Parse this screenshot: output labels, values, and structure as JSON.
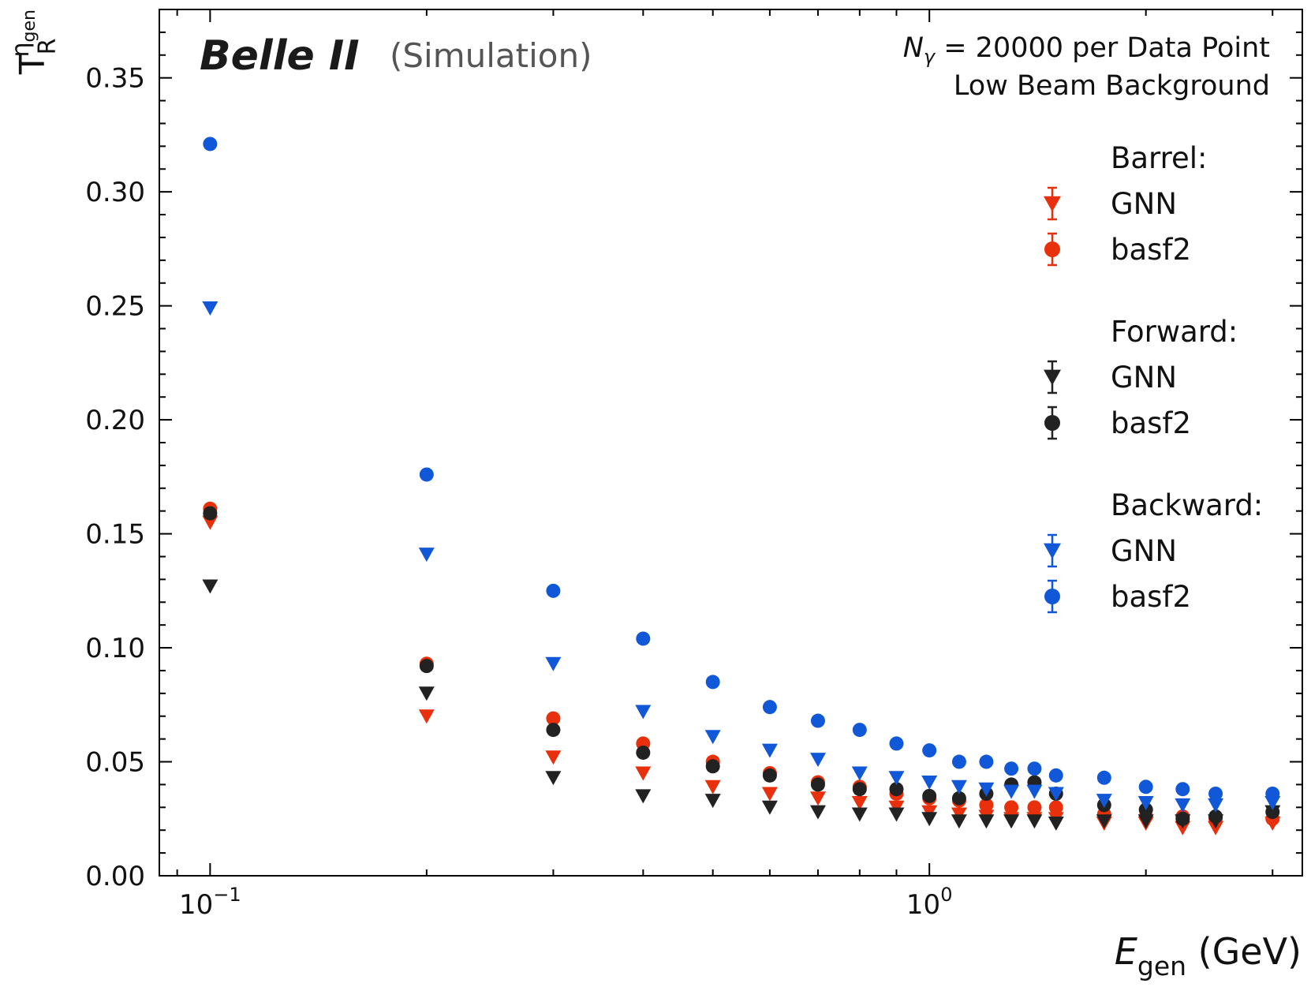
{
  "chart_data": {
    "type": "scatter",
    "title": "",
    "experiment": "Belle II",
    "experiment_note": "(Simulation)",
    "annotation_line1_symbol": "N",
    "annotation_line1_sub": "γ",
    "annotation_line1_rest": " = 20000 per Data Point",
    "annotation_line2": "Low Beam Background",
    "xlabel_symbol": "E",
    "xlabel_sub": "gen",
    "xlabel_unit": " (GeV)",
    "ylabel_main": "T",
    "ylabel_sub": "R",
    "ylabel_sup": "η",
    "ylabel_sup_sub": "gen",
    "xscale": "log",
    "xlim": [
      0.085,
      3.3
    ],
    "ylim": [
      0.0,
      0.38
    ],
    "xticks": [
      {
        "value": 0.1,
        "base": "10",
        "exp": "−1"
      },
      {
        "value": 1.0,
        "base": "10",
        "exp": "0"
      }
    ],
    "yticks": [
      {
        "value": 0.0,
        "label": "0.00"
      },
      {
        "value": 0.05,
        "label": "0.05"
      },
      {
        "value": 0.1,
        "label": "0.10"
      },
      {
        "value": 0.15,
        "label": "0.15"
      },
      {
        "value": 0.2,
        "label": "0.20"
      },
      {
        "value": 0.25,
        "label": "0.25"
      },
      {
        "value": 0.3,
        "label": "0.30"
      },
      {
        "value": 0.35,
        "label": "0.35"
      }
    ],
    "x": [
      0.1,
      0.2,
      0.3,
      0.4,
      0.5,
      0.6,
      0.7,
      0.8,
      0.9,
      1.0,
      1.1,
      1.2,
      1.3,
      1.4,
      1.5,
      1.75,
      2.0,
      2.25,
      2.5,
      3.0
    ],
    "legend_groups": [
      {
        "title": "Barrel:",
        "color": "#e8300c"
      },
      {
        "title": "Forward:",
        "color": "#222222"
      },
      {
        "title": "Backward:",
        "color": "#1158d8"
      }
    ],
    "series": [
      {
        "group": "Barrel",
        "name": "GNN",
        "marker": "triangle-down",
        "color": "#e8300c",
        "values": [
          0.155,
          0.07,
          0.052,
          0.045,
          0.039,
          0.036,
          0.034,
          0.032,
          0.03,
          0.028,
          0.027,
          0.026,
          0.025,
          0.025,
          0.025,
          0.023,
          0.023,
          0.021,
          0.021,
          0.023
        ]
      },
      {
        "group": "Barrel",
        "name": "basf2",
        "marker": "circle",
        "color": "#e8300c",
        "values": [
          0.161,
          0.093,
          0.069,
          0.058,
          0.05,
          0.045,
          0.041,
          0.039,
          0.036,
          0.034,
          0.033,
          0.031,
          0.03,
          0.03,
          0.03,
          0.027,
          0.026,
          0.026,
          0.025,
          0.025
        ]
      },
      {
        "group": "Forward",
        "name": "GNN",
        "marker": "triangle-down",
        "color": "#222222",
        "values": [
          0.127,
          0.08,
          0.043,
          0.035,
          0.033,
          0.03,
          0.028,
          0.027,
          0.027,
          0.025,
          0.024,
          0.024,
          0.024,
          0.024,
          0.023,
          0.024,
          0.024,
          0.024,
          0.024,
          0.028
        ]
      },
      {
        "group": "Forward",
        "name": "basf2",
        "marker": "circle",
        "color": "#222222",
        "values": [
          0.159,
          0.092,
          0.064,
          0.054,
          0.048,
          0.044,
          0.04,
          0.038,
          0.038,
          0.035,
          0.034,
          0.036,
          0.04,
          0.041,
          0.036,
          0.031,
          0.029,
          0.025,
          0.026,
          0.028
        ]
      },
      {
        "group": "Backward",
        "name": "GNN",
        "marker": "triangle-down",
        "color": "#1158d8",
        "values": [
          0.249,
          0.141,
          0.093,
          0.072,
          0.061,
          0.055,
          0.051,
          0.045,
          0.043,
          0.041,
          0.039,
          0.038,
          0.037,
          0.037,
          0.036,
          0.033,
          0.032,
          0.031,
          0.031,
          0.032
        ]
      },
      {
        "group": "Backward",
        "name": "basf2",
        "marker": "circle",
        "color": "#1158d8",
        "values": [
          0.321,
          0.176,
          0.125,
          0.104,
          0.085,
          0.074,
          0.068,
          0.064,
          0.058,
          0.055,
          0.05,
          0.05,
          0.047,
          0.047,
          0.044,
          0.043,
          0.039,
          0.038,
          0.036,
          0.036
        ]
      }
    ],
    "grid": false,
    "legend_position": "right"
  }
}
